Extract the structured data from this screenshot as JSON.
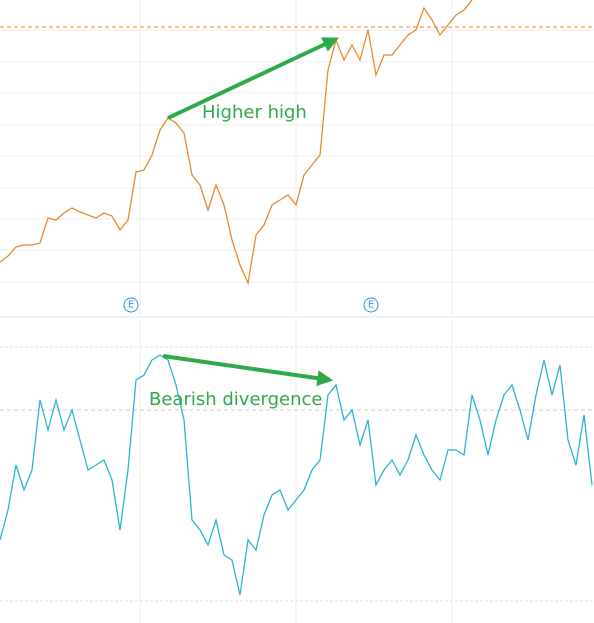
{
  "chart_data": [
    {
      "type": "line",
      "color": "#e8892b",
      "x": [
        0,
        1,
        2,
        3,
        4,
        5,
        6,
        7,
        8,
        9,
        10,
        11,
        12,
        13,
        14,
        15,
        16,
        17,
        18,
        19,
        20,
        21,
        22,
        23,
        24,
        25,
        26,
        27,
        28,
        29,
        30,
        31,
        32,
        33,
        34,
        35,
        36,
        37,
        38,
        39,
        40,
        41,
        42,
        43,
        44,
        45,
        46,
        47,
        48,
        49,
        50,
        51,
        52,
        53,
        54,
        55,
        56,
        57,
        58,
        59
      ],
      "values": [
        53,
        59,
        68,
        70,
        70,
        72,
        97,
        95,
        102,
        107,
        103,
        100,
        97,
        102,
        99,
        85,
        95,
        143,
        145,
        160,
        185,
        197,
        192,
        182,
        140,
        130,
        105,
        130,
        110,
        75,
        50,
        32,
        80,
        90,
        110,
        115,
        120,
        110,
        140,
        150,
        160,
        245,
        275,
        255,
        270,
        255,
        285,
        240,
        260,
        260,
        270,
        280,
        285,
        307,
        295,
        280,
        290,
        300,
        305,
        315
      ],
      "xlim": [
        0,
        74
      ],
      "ylim": [
        0,
        315
      ],
      "xticks": [
        17.5,
        37,
        56.5
      ],
      "yticks": [
        33,
        65,
        96,
        127,
        159,
        190,
        222,
        253,
        285
      ],
      "grid": true,
      "reference_line": 288,
      "annotations": [
        "Higher high"
      ],
      "event_markers": [
        "E",
        "E"
      ]
    },
    {
      "type": "line",
      "color": "#2bb3d1",
      "x": [
        0,
        1,
        2,
        3,
        4,
        5,
        6,
        7,
        8,
        9,
        10,
        11,
        12,
        13,
        14,
        15,
        16,
        17,
        18,
        19,
        20,
        21,
        22,
        23,
        24,
        25,
        26,
        27,
        28,
        29,
        30,
        31,
        32,
        33,
        34,
        35,
        36,
        37,
        38,
        39,
        40,
        41,
        42,
        43,
        44,
        45,
        46,
        47,
        48,
        49,
        50,
        51,
        52,
        53,
        54,
        55,
        56,
        57,
        58,
        59,
        60,
        61,
        62,
        63,
        64,
        65,
        66,
        67,
        68,
        69,
        70,
        71,
        72,
        73,
        74
      ],
      "values": [
        83,
        113,
        158,
        133,
        153,
        223,
        193,
        223,
        193,
        213,
        183,
        153,
        158,
        163,
        143,
        93,
        153,
        243,
        248,
        263,
        268,
        263,
        238,
        203,
        103,
        93,
        78,
        103,
        68,
        63,
        28,
        83,
        73,
        108,
        128,
        133,
        113,
        123,
        133,
        153,
        163,
        228,
        238,
        203,
        213,
        178,
        203,
        138,
        153,
        163,
        148,
        163,
        188,
        168,
        153,
        143,
        173,
        173,
        168,
        228,
        203,
        168,
        203,
        228,
        238,
        213,
        183,
        228,
        263,
        228,
        258,
        183,
        158,
        208,
        138
      ],
      "xlim": [
        0,
        74
      ],
      "ylim": [
        0,
        303
      ],
      "xticks": [
        17.5,
        37,
        56.5
      ],
      "yticks": [
        22,
        276
      ],
      "reference_line": 213,
      "grid": true,
      "annotations": [
        "Bearish divergence"
      ]
    }
  ]
}
